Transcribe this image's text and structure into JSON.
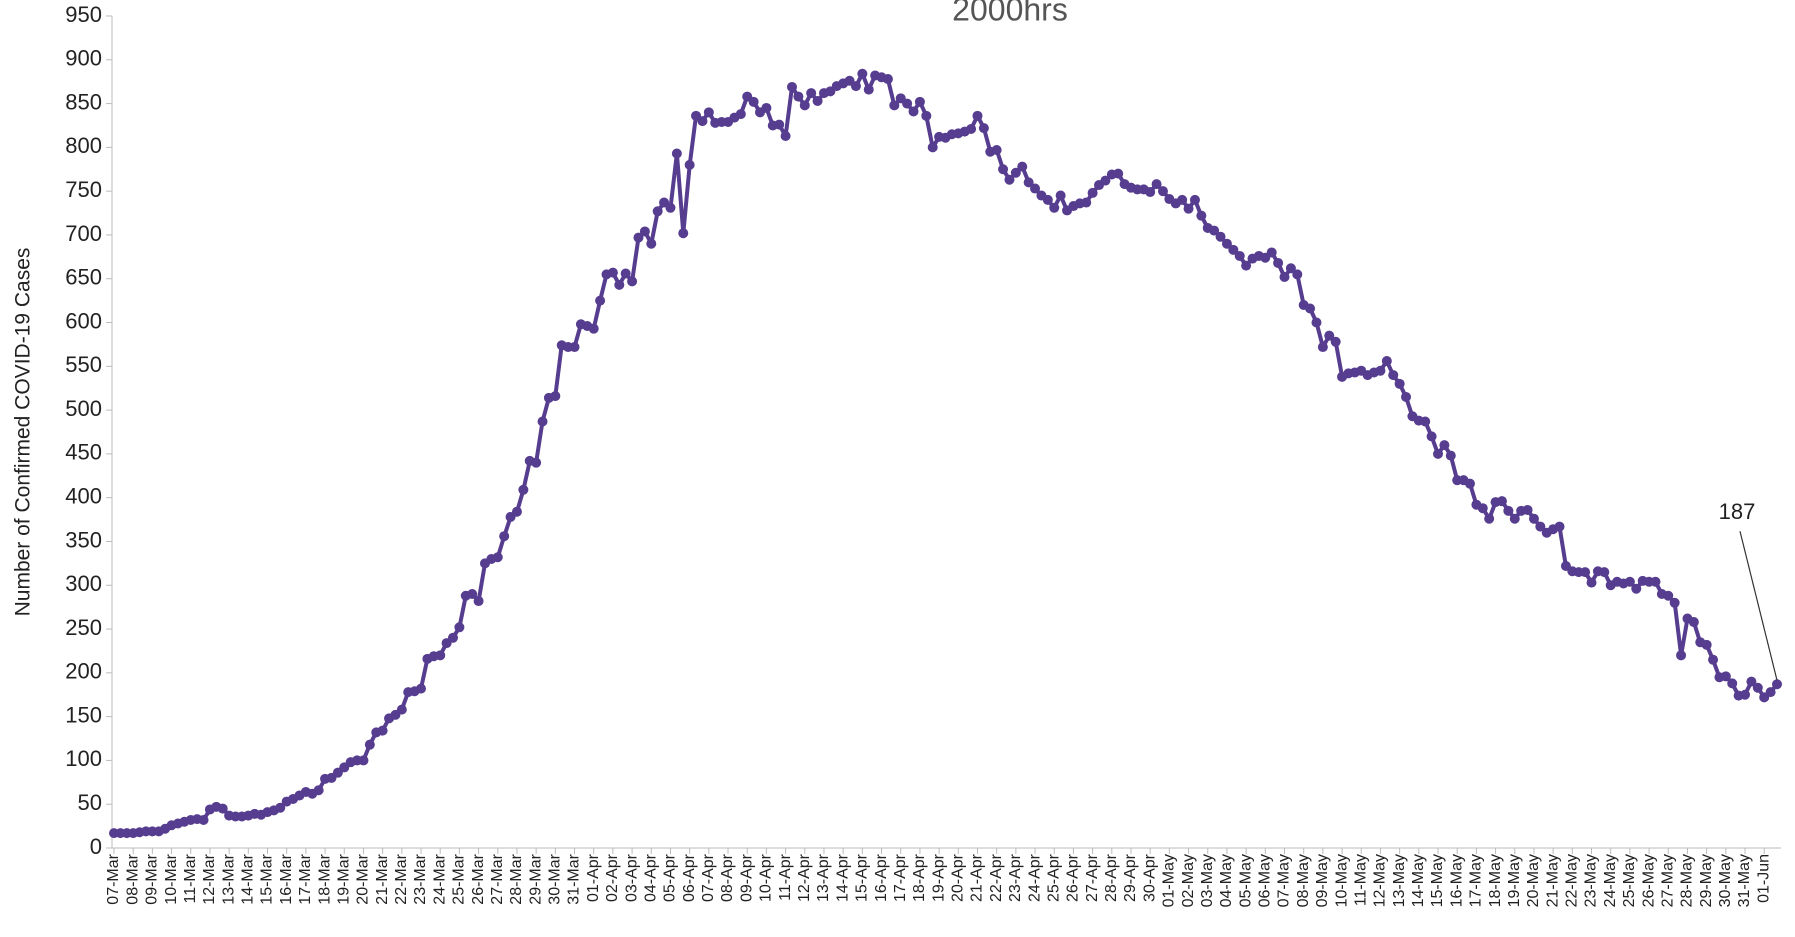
{
  "chart_data": {
    "type": "line",
    "title": "2000hrs",
    "y_label": "Number of Confirmed COVID-19 Cases",
    "color": "#563d8f",
    "ylim": [
      0,
      950
    ],
    "yticks": [
      0,
      50,
      100,
      150,
      200,
      250,
      300,
      350,
      400,
      450,
      500,
      550,
      600,
      650,
      700,
      750,
      800,
      850,
      900,
      950
    ],
    "grid": false,
    "annotations": [
      {
        "text": "187"
      }
    ],
    "categories": [
      "07-Mar",
      null,
      null,
      "08-Mar",
      null,
      null,
      "09-Mar",
      null,
      null,
      "10-Mar",
      null,
      null,
      "11-Mar",
      null,
      null,
      "12-Mar",
      null,
      null,
      "13-Mar",
      null,
      null,
      "14-Mar",
      null,
      null,
      "15-Mar",
      null,
      null,
      "16-Mar",
      null,
      null,
      "17-Mar",
      null,
      null,
      "18-Mar",
      null,
      null,
      "19-Mar",
      null,
      null,
      "20-Mar",
      null,
      null,
      "21-Mar",
      null,
      null,
      "22-Mar",
      null,
      null,
      "23-Mar",
      null,
      null,
      "24-Mar",
      null,
      null,
      "25-Mar",
      null,
      null,
      "26-Mar",
      null,
      null,
      "27-Mar",
      null,
      null,
      "28-Mar",
      null,
      null,
      "29-Mar",
      null,
      null,
      "30-Mar",
      null,
      null,
      "31-Mar",
      null,
      null,
      "01-Apr",
      null,
      null,
      "02-Apr",
      null,
      null,
      "03-Apr",
      null,
      null,
      "04-Apr",
      null,
      null,
      "05-Apr",
      null,
      null,
      "06-Apr",
      null,
      null,
      "07-Apr",
      null,
      null,
      "08-Apr",
      null,
      null,
      "09-Apr",
      null,
      null,
      "10-Apr",
      null,
      null,
      "11-Apr",
      null,
      null,
      "12-Apr",
      null,
      null,
      "13-Apr",
      null,
      null,
      "14-Apr",
      null,
      null,
      "15-Apr",
      null,
      null,
      "16-Apr",
      null,
      null,
      "17-Apr",
      null,
      null,
      "18-Apr",
      null,
      null,
      "19-Apr",
      null,
      null,
      "20-Apr",
      null,
      null,
      "21-Apr",
      null,
      null,
      "22-Apr",
      null,
      null,
      "23-Apr",
      null,
      null,
      "24-Apr",
      null,
      null,
      "25-Apr",
      null,
      null,
      "26-Apr",
      null,
      null,
      "27-Apr",
      null,
      null,
      "28-Apr",
      null,
      null,
      "29-Apr",
      null,
      null,
      "30-Apr",
      null,
      null,
      "01-May",
      null,
      null,
      "02-May",
      null,
      null,
      "03-May",
      null,
      null,
      "04-May",
      null,
      null,
      "05-May",
      null,
      null,
      "06-May",
      null,
      null,
      "07-May",
      null,
      null,
      "08-May",
      null,
      null,
      "09-May",
      null,
      null,
      "10-May",
      null,
      null,
      "11-May",
      null,
      null,
      "12-May",
      null,
      null,
      "13-May",
      null,
      null,
      "14-May",
      null,
      null,
      "15-May",
      null,
      null,
      "16-May",
      null,
      null,
      "17-May",
      null,
      null,
      "18-May",
      null,
      null,
      "19-May",
      null,
      null,
      "20-May",
      null,
      null,
      "21-May",
      null,
      null,
      "22-May",
      null,
      null,
      "23-May",
      null,
      null,
      "24-May",
      null,
      null,
      "25-May",
      null,
      null,
      "26-May",
      null,
      null,
      "27-May",
      null,
      null,
      "28-May",
      null,
      null,
      "29-May",
      null,
      null,
      "30-May",
      null,
      null,
      "31-May",
      null,
      null,
      "01-Jun",
      null,
      null
    ],
    "values": [
      17,
      17,
      17,
      17,
      18,
      19,
      19,
      19,
      22,
      26,
      28,
      30,
      32,
      33,
      32,
      44,
      47,
      45,
      37,
      36,
      36,
      37,
      39,
      38,
      41,
      43,
      46,
      53,
      56,
      60,
      64,
      62,
      66,
      79,
      80,
      86,
      92,
      98,
      100,
      100,
      118,
      132,
      134,
      148,
      152,
      158,
      178,
      179,
      182,
      216,
      219,
      220,
      234,
      240,
      252,
      288,
      290,
      282,
      325,
      330,
      332,
      356,
      378,
      384,
      409,
      442,
      440,
      487,
      514,
      516,
      574,
      572,
      572,
      598,
      596,
      593,
      625,
      655,
      657,
      643,
      656,
      647,
      697,
      704,
      690,
      727,
      737,
      731,
      793,
      702,
      780,
      836,
      830,
      840,
      828,
      829,
      829,
      834,
      838,
      858,
      852,
      840,
      845,
      825,
      826,
      813,
      869,
      858,
      848,
      862,
      853,
      862,
      864,
      870,
      873,
      876,
      870,
      884,
      866,
      882,
      880,
      878,
      848,
      856,
      850,
      841,
      852,
      836,
      800,
      812,
      811,
      815,
      816,
      818,
      821,
      836,
      822,
      795,
      797,
      775,
      763,
      771,
      778,
      760,
      753,
      745,
      740,
      731,
      745,
      728,
      733,
      736,
      737,
      748,
      757,
      762,
      769,
      770,
      758,
      754,
      752,
      752,
      749,
      758,
      750,
      741,
      736,
      740,
      730,
      740,
      722,
      708,
      705,
      698,
      690,
      683,
      676,
      665,
      673,
      676,
      674,
      680,
      668,
      652,
      662,
      655,
      620,
      616,
      600,
      572,
      585,
      578,
      538,
      542,
      543,
      545,
      540,
      543,
      545,
      556,
      540,
      530,
      515,
      493,
      488,
      487,
      470,
      450,
      460,
      448,
      420,
      420,
      416,
      392,
      388,
      376,
      395,
      396,
      385,
      376,
      385,
      386,
      376,
      367,
      360,
      364,
      367,
      322,
      316,
      315,
      315,
      303,
      316,
      315,
      300,
      304,
      302,
      304,
      296,
      305,
      304,
      304,
      290,
      288,
      280,
      220,
      262,
      258,
      235,
      232,
      215,
      195,
      196,
      188,
      174,
      175,
      190,
      183,
      172,
      178,
      187
    ]
  }
}
